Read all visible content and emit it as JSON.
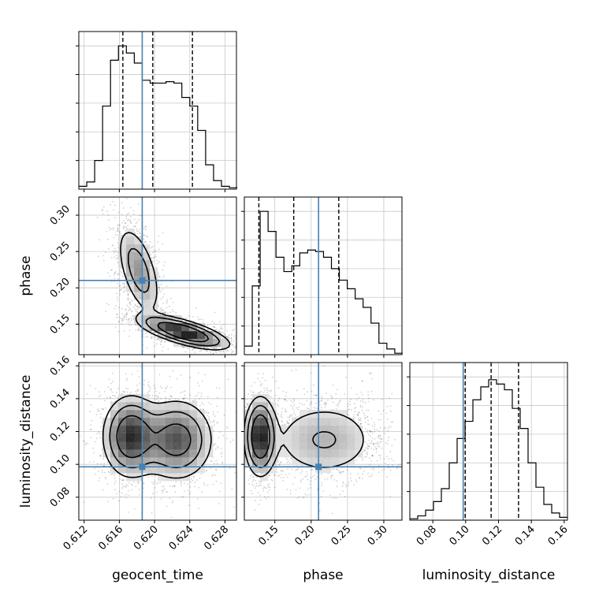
{
  "chart_data": {
    "type": "corner",
    "parameters": [
      "geocent_time",
      "phase",
      "luminosity_distance"
    ],
    "truth": {
      "geocent_time": 0.6186,
      "phase": 0.2102,
      "luminosity_distance": 0.0985
    },
    "truth_color": "#4682b4",
    "ranges": {
      "geocent_time": [
        0.6114,
        0.6293
      ],
      "phase": [
        0.108,
        0.325
      ],
      "luminosity_distance": [
        0.066,
        0.162
      ]
    },
    "ticks": {
      "geocent_time": {
        "values": [
          0.612,
          0.616,
          0.62,
          0.624,
          0.628
        ],
        "labels": [
          "0.612",
          "0.616",
          "0.620",
          "0.624",
          "0.628"
        ]
      },
      "phase": {
        "values": [
          0.15,
          0.2,
          0.25,
          0.3
        ],
        "labels": [
          "0.15",
          "0.20",
          "0.25",
          "0.30"
        ]
      },
      "luminosity_distance": {
        "values": [
          0.08,
          0.1,
          0.12,
          0.14,
          0.16
        ],
        "labels": [
          "0.08",
          "0.10",
          "0.12",
          "0.14",
          "0.16"
        ]
      }
    },
    "quantiles": {
      "geocent_time": [
        0.6164,
        0.6198,
        0.6243
      ],
      "phase": [
        0.128,
        0.176,
        0.238
      ],
      "luminosity_distance": [
        0.0997,
        0.1155,
        0.1322
      ]
    },
    "histograms": {
      "geocent_time": {
        "edges": [
          0.6114,
          0.6123,
          0.6132,
          0.6141,
          0.615,
          0.6159,
          0.6168,
          0.6177,
          0.6186,
          0.6195,
          0.6204,
          0.6213,
          0.6222,
          0.6231,
          0.624,
          0.6249,
          0.6258,
          0.6267,
          0.6276,
          0.6285,
          0.6294
        ],
        "counts": [
          2,
          5,
          20,
          58,
          90,
          100,
          95,
          88,
          76,
          74,
          74,
          75,
          74,
          64,
          58,
          41,
          17,
          6,
          2,
          1
        ]
      },
      "phase": {
        "edges": [
          0.108,
          0.1189,
          0.1298,
          0.1407,
          0.1516,
          0.1625,
          0.1734,
          0.1843,
          0.1952,
          0.2061,
          0.217,
          0.2279,
          0.2388,
          0.2497,
          0.2606,
          0.2715,
          0.2824,
          0.2933,
          0.3042,
          0.3151,
          0.326
        ],
        "counts": [
          6,
          48,
          100,
          86,
          68,
          58,
          62,
          71,
          73,
          72,
          68,
          60,
          52,
          46,
          39,
          33,
          22,
          8,
          4,
          1
        ]
      },
      "luminosity_distance": {
        "edges": [
          0.066,
          0.0708,
          0.0756,
          0.0804,
          0.0852,
          0.09,
          0.0948,
          0.0996,
          0.1044,
          0.1092,
          0.114,
          0.1188,
          0.1236,
          0.1284,
          0.1332,
          0.138,
          0.1428,
          0.1476,
          0.1524,
          0.1572,
          0.162
        ],
        "counts": [
          1,
          3,
          7,
          13,
          22,
          40,
          57,
          69,
          84,
          93,
          98,
          95,
          91,
          78,
          64,
          40,
          23,
          11,
          5,
          2
        ]
      }
    },
    "density_2d": [
      {
        "x": "geocent_time",
        "y": "phase",
        "components": [
          {
            "mx": 0.6182,
            "my": 0.224,
            "sx": 0.0013,
            "sy": 0.033,
            "rho": -0.55,
            "w": 0.42
          },
          {
            "mx": 0.6233,
            "my": 0.139,
            "sx": 0.0026,
            "sy": 0.012,
            "rho": -0.7,
            "w": 0.58
          }
        ]
      },
      {
        "x": "geocent_time",
        "y": "luminosity_distance",
        "components": [
          {
            "mx": 0.6173,
            "my": 0.117,
            "sx": 0.0016,
            "sy": 0.0125,
            "rho": 0.0,
            "w": 0.48
          },
          {
            "mx": 0.6225,
            "my": 0.115,
            "sx": 0.0021,
            "sy": 0.0125,
            "rho": 0.0,
            "w": 0.52
          }
        ]
      },
      {
        "x": "phase",
        "y": "luminosity_distance",
        "components": [
          {
            "mx": 0.13,
            "my": 0.117,
            "sx": 0.011,
            "sy": 0.012,
            "rho": 0.0,
            "w": 0.45
          },
          {
            "mx": 0.218,
            "my": 0.115,
            "sx": 0.04,
            "sy": 0.0125,
            "rho": 0.0,
            "w": 0.55
          }
        ]
      }
    ],
    "grid": true,
    "title": ""
  }
}
